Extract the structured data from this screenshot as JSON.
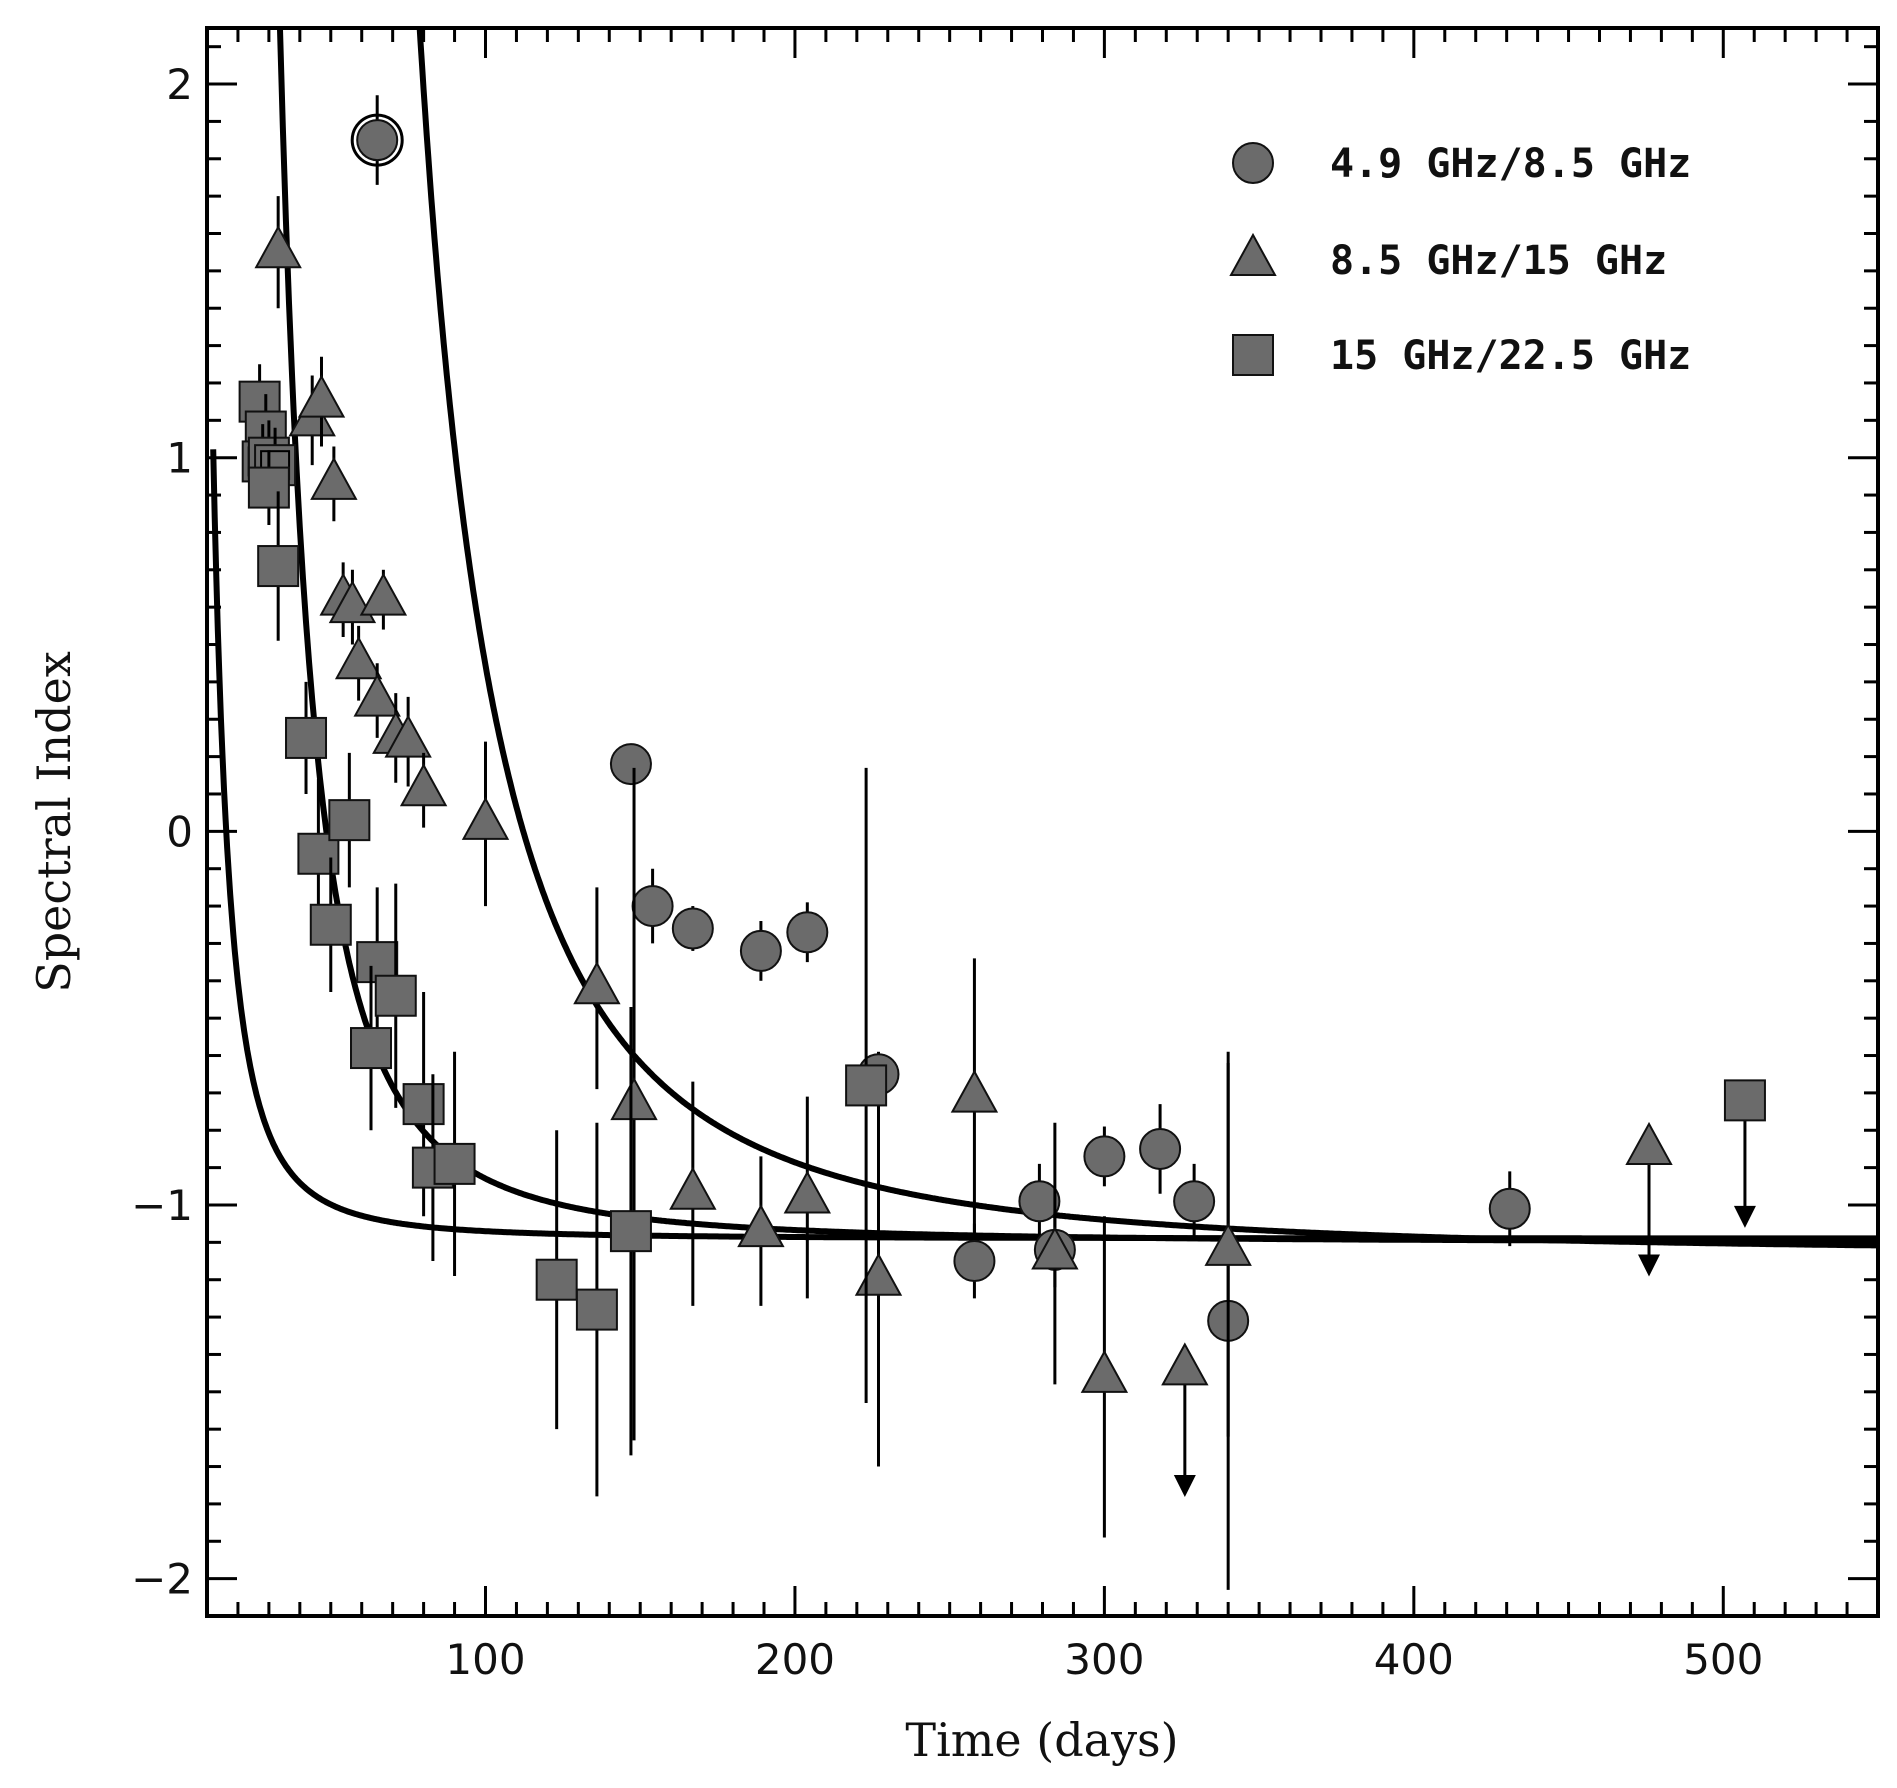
{
  "chart_data": {
    "type": "scatter",
    "title": "",
    "xlabel": "Time (days)",
    "ylabel": "Spectral Index",
    "xlim": [
      10,
      550
    ],
    "ylim": [
      -2.1,
      2.15
    ],
    "x_ticks": [
      100,
      200,
      300,
      400,
      500
    ],
    "x_tick_labels": [
      "100",
      "200",
      "300",
      "400",
      "500"
    ],
    "y_ticks": [
      2,
      1,
      0,
      -1,
      -2
    ],
    "y_tick_labels": [
      "2",
      "1",
      "0",
      "−1",
      "−2"
    ],
    "legend_position": "top-right",
    "colors": {
      "marker_fill": "#6b6b6b",
      "marker_stroke": "#111111",
      "line": "#000000"
    },
    "series": [
      {
        "name": "4.9 GHz/8.5 GHz",
        "marker": "circle",
        "points": [
          {
            "x": 65,
            "y": 1.85,
            "err": 0.12,
            "highlight": true
          },
          {
            "x": 147,
            "y": 0.18,
            "err": 0.03
          },
          {
            "x": 154,
            "y": -0.2,
            "err": 0.1
          },
          {
            "x": 167,
            "y": -0.26,
            "err": 0.06
          },
          {
            "x": 189,
            "y": -0.32,
            "err": 0.08
          },
          {
            "x": 204,
            "y": -0.27,
            "err": 0.08
          },
          {
            "x": 227,
            "y": -0.65,
            "err": 0.06
          },
          {
            "x": 258,
            "y": -1.15,
            "err": 0.1
          },
          {
            "x": 279,
            "y": -0.99,
            "err": 0.1
          },
          {
            "x": 284,
            "y": -1.12,
            "err": 0.1
          },
          {
            "x": 300,
            "y": -0.87,
            "err": 0.08
          },
          {
            "x": 318,
            "y": -0.85,
            "err": 0.12
          },
          {
            "x": 329,
            "y": -0.99,
            "err": 0.1
          },
          {
            "x": 340,
            "y": -1.31,
            "err": 0.72
          },
          {
            "x": 431,
            "y": -1.01,
            "err": 0.1
          }
        ]
      },
      {
        "name": "8.5 GHz/15 GHz",
        "marker": "triangle",
        "points": [
          {
            "x": 33,
            "y": 1.55,
            "err": 0.15
          },
          {
            "x": 44,
            "y": 1.1,
            "err": 0.12
          },
          {
            "x": 47,
            "y": 1.15,
            "err": 0.12
          },
          {
            "x": 51,
            "y": 0.93,
            "err": 0.1
          },
          {
            "x": 54,
            "y": 0.62,
            "err": 0.1
          },
          {
            "x": 57,
            "y": 0.6,
            "err": 0.1
          },
          {
            "x": 59,
            "y": 0.45,
            "err": 0.1
          },
          {
            "x": 67,
            "y": 0.62,
            "err": 0.08
          },
          {
            "x": 65,
            "y": 0.35,
            "err": 0.1
          },
          {
            "x": 71,
            "y": 0.25,
            "err": 0.12
          },
          {
            "x": 75,
            "y": 0.24,
            "err": 0.12
          },
          {
            "x": 80,
            "y": 0.11,
            "err": 0.1
          },
          {
            "x": 100,
            "y": 0.02,
            "err": 0.22
          },
          {
            "x": 136,
            "y": -0.42,
            "err": 0.27
          },
          {
            "x": 148,
            "y": -0.73,
            "err": 0.9
          },
          {
            "x": 167,
            "y": -0.97,
            "err": 0.3
          },
          {
            "x": 189,
            "y": -1.07,
            "err": 0.2
          },
          {
            "x": 204,
            "y": -0.98,
            "err": 0.27
          },
          {
            "x": 227,
            "y": -1.2,
            "err": 0.5
          },
          {
            "x": 258,
            "y": -0.71,
            "err": 0.37
          },
          {
            "x": 284,
            "y": -1.13,
            "err": 0.35
          },
          {
            "x": 300,
            "y": -1.46,
            "err": 0.43
          },
          {
            "x": 326,
            "y": -1.44,
            "err": 0.0,
            "upper_limit": true
          },
          {
            "x": 340,
            "y": -1.12,
            "err": 0.5
          },
          {
            "x": 476,
            "y": -0.85,
            "err": 0.0,
            "upper_limit": true
          }
        ]
      },
      {
        "name": "15 GHz/22.5 GHz",
        "marker": "square",
        "points": [
          {
            "x": 27,
            "y": 1.15,
            "err": 0.1
          },
          {
            "x": 29,
            "y": 1.07,
            "err": 0.1
          },
          {
            "x": 28,
            "y": 0.99,
            "err": 0.1,
            "highlight": true
          },
          {
            "x": 30,
            "y": 1.0,
            "err": 0.1
          },
          {
            "x": 32,
            "y": 0.98,
            "err": 0.1,
            "highlight": true
          },
          {
            "x": 30,
            "y": 0.92,
            "err": 0.1
          },
          {
            "x": 33,
            "y": 0.71,
            "err": 0.2
          },
          {
            "x": 42,
            "y": 0.25,
            "err": 0.15
          },
          {
            "x": 46,
            "y": -0.06,
            "err": 0.2
          },
          {
            "x": 56,
            "y": 0.03,
            "err": 0.18
          },
          {
            "x": 50,
            "y": -0.25,
            "err": 0.18
          },
          {
            "x": 65,
            "y": -0.35,
            "err": 0.2
          },
          {
            "x": 71,
            "y": -0.44,
            "err": 0.3
          },
          {
            "x": 63,
            "y": -0.58,
            "err": 0.22
          },
          {
            "x": 80,
            "y": -0.73,
            "err": 0.3
          },
          {
            "x": 83,
            "y": -0.9,
            "err": 0.25
          },
          {
            "x": 90,
            "y": -0.89,
            "err": 0.3
          },
          {
            "x": 123,
            "y": -1.2,
            "err": 0.4
          },
          {
            "x": 136,
            "y": -1.28,
            "err": 0.5
          },
          {
            "x": 147,
            "y": -1.07,
            "err": 0.6
          },
          {
            "x": 223,
            "y": -0.68,
            "err": 0.85
          },
          {
            "x": 507,
            "y": -0.72,
            "err": 0.0,
            "upper_limit": true
          }
        ]
      }
    ],
    "fit_curves": [
      {
        "name": "fit-4.9-8.5",
        "asymptote": -1.13,
        "amplitude": 21000,
        "t0": 25,
        "power": 2.2
      },
      {
        "name": "fit-8.5-15",
        "asymptote": -1.1,
        "amplitude": 3400,
        "t0": 10,
        "power": 2.2
      },
      {
        "name": "fit-15-22.5",
        "asymptote": -1.09,
        "amplitude": 500,
        "t0": 0,
        "power": 2.2
      }
    ]
  }
}
